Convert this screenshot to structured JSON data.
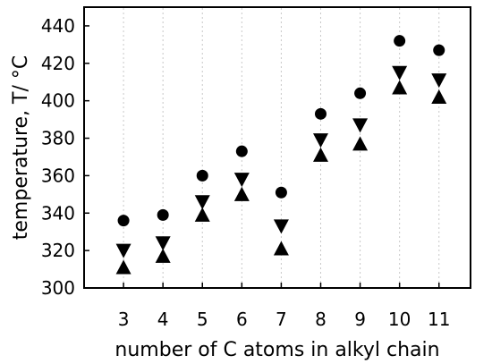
{
  "chart_data": {
    "type": "scatter",
    "title": "",
    "xlabel": "number of C atoms in alkyl chain",
    "ylabel": "temperature, T/ °C",
    "categories": [
      "3",
      "4",
      "5",
      "6",
      "7",
      "8",
      "9",
      "10",
      "11"
    ],
    "x": [
      3,
      4,
      5,
      6,
      7,
      8,
      9,
      10,
      11
    ],
    "xlim": [
      2,
      11.8
    ],
    "ylim": [
      300,
      450
    ],
    "yticks": [
      300,
      320,
      340,
      360,
      380,
      400,
      420,
      440
    ],
    "grid": "vertical-dotted",
    "legend": "none",
    "series": [
      {
        "marker": "circle",
        "color": "#000000",
        "values": [
          336,
          339,
          360,
          373,
          351,
          393,
          404,
          432,
          427
        ]
      },
      {
        "marker": "triangle-down",
        "color": "#000000",
        "values": [
          320,
          324,
          346,
          358,
          333,
          379,
          387,
          415,
          411
        ]
      },
      {
        "marker": "triangle-up",
        "color": "#000000",
        "values": [
          311,
          317,
          339,
          350,
          321,
          371,
          377,
          407,
          402
        ]
      }
    ]
  }
}
